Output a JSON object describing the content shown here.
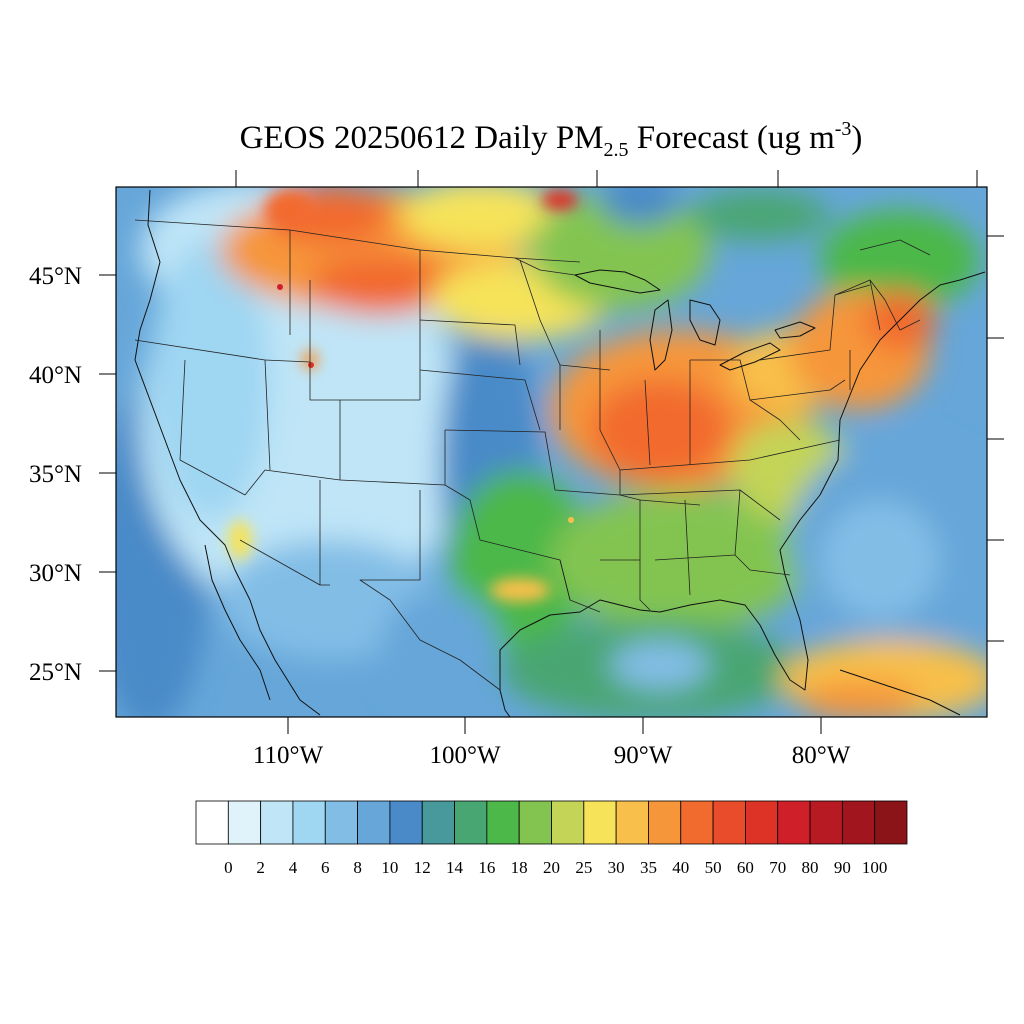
{
  "title": {
    "prefix": "GEOS 20250612 Daily PM",
    "subscript": "2.5",
    "middle": " Forecast (ug m",
    "superscript": "-3",
    "suffix": ")"
  },
  "axes": {
    "lon_labels": [
      "110°W",
      "100°W",
      "90°W",
      "80°W"
    ],
    "lat_labels": [
      "45°N",
      "40°N",
      "35°N",
      "30°N",
      "25°N"
    ]
  },
  "colorbar": {
    "levels": [
      "0",
      "2",
      "4",
      "6",
      "8",
      "10",
      "12",
      "14",
      "16",
      "18",
      "20",
      "25",
      "30",
      "35",
      "40",
      "50",
      "60",
      "70",
      "80",
      "90",
      "100"
    ],
    "colors": [
      "#ffffff",
      "#e0f3fb",
      "#bfe5f7",
      "#9fd6f2",
      "#82bde6",
      "#66a6d9",
      "#4a8ac8",
      "#48999b",
      "#48a672",
      "#4cb84a",
      "#83c451",
      "#c3d456",
      "#f6e35a",
      "#f8c04a",
      "#f6963a",
      "#f26b2e",
      "#e84c2a",
      "#dd3327",
      "#cf2029",
      "#b81a24",
      "#a0151e",
      "#8b1418"
    ]
  }
}
